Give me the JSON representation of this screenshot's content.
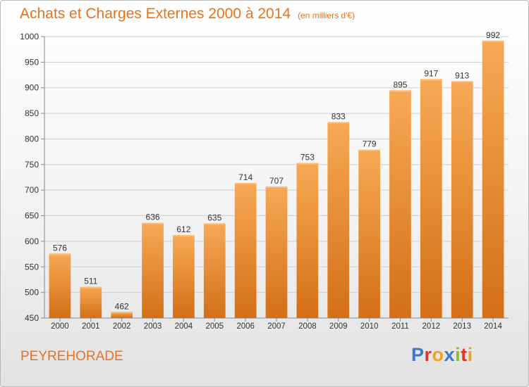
{
  "header": {
    "title": "Achats et Charges Externes 2000 à 2014",
    "subtitle": "(en milliers d'€)"
  },
  "footer": {
    "location": "PEYREHORADE",
    "brand": "Proxiti"
  },
  "colors": {
    "accent": "#e5731f",
    "bar_top": "#f7a955",
    "bar_bottom": "#d36f17",
    "brand_letters": [
      "#3d77c8",
      "#e43427",
      "#f0a21d",
      "#3d77c8",
      "#8cbd2b",
      "#e43427",
      "#f0a21d"
    ]
  },
  "chart_data": {
    "type": "bar",
    "title": "Achats et Charges Externes 2000 à 2014",
    "subtitle": "(en milliers d'€)",
    "xlabel": "",
    "ylabel": "",
    "categories": [
      "2000",
      "2001",
      "2002",
      "2003",
      "2004",
      "2005",
      "2006",
      "2007",
      "2008",
      "2009",
      "2010",
      "2011",
      "2012",
      "2013",
      "2014"
    ],
    "values": [
      576,
      511,
      462,
      636,
      612,
      635,
      714,
      707,
      753,
      833,
      779,
      895,
      917,
      913,
      992
    ],
    "ylim": [
      450,
      1000
    ],
    "yticks": [
      450,
      500,
      550,
      600,
      650,
      700,
      750,
      800,
      850,
      900,
      950,
      1000
    ],
    "grid": true,
    "data_labels": true
  }
}
